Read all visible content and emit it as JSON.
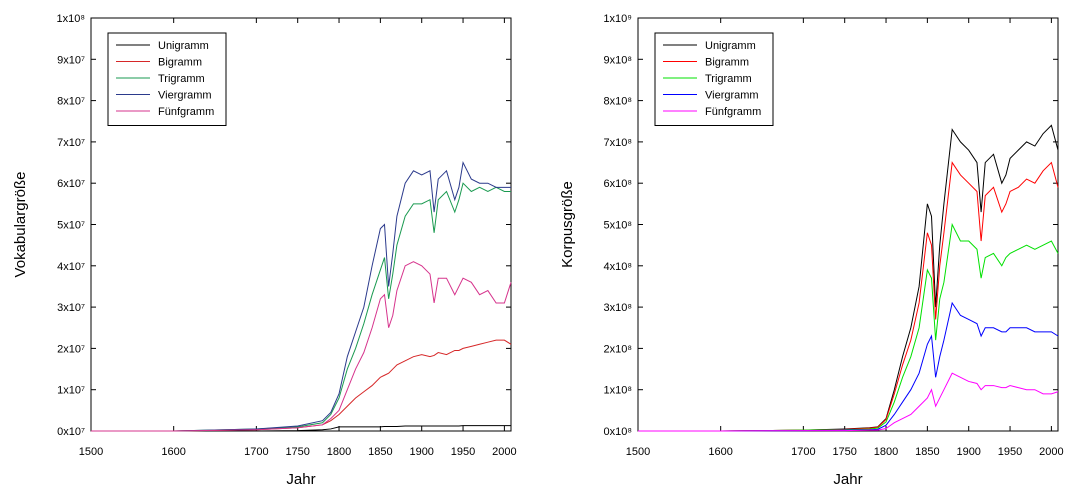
{
  "chart_data": [
    {
      "type": "line",
      "xlabel": "Jahr",
      "ylabel": "Vokabulargröße",
      "x": [
        1500,
        1600,
        1700,
        1750,
        1780,
        1790,
        1800,
        1810,
        1820,
        1830,
        1840,
        1850,
        1855,
        1860,
        1865,
        1870,
        1880,
        1890,
        1900,
        1910,
        1915,
        1920,
        1930,
        1940,
        1945,
        1950,
        1960,
        1970,
        1980,
        1990,
        2000,
        2008
      ],
      "xlim": [
        1500,
        2008
      ],
      "xticks": [
        1500,
        1600,
        1700,
        1750,
        1800,
        1850,
        1900,
        1950,
        2000
      ],
      "ylim": [
        0,
        100000000.0
      ],
      "yticks": [
        {
          "value": 0,
          "label": "0x10⁷"
        },
        {
          "value": 10000000.0,
          "label": "1x10⁷"
        },
        {
          "value": 20000000.0,
          "label": "2x10⁷"
        },
        {
          "value": 30000000.0,
          "label": "3x10⁷"
        },
        {
          "value": 40000000.0,
          "label": "4x10⁷"
        },
        {
          "value": 50000000.0,
          "label": "5x10⁷"
        },
        {
          "value": 60000000.0,
          "label": "6x10⁷"
        },
        {
          "value": 70000000.0,
          "label": "7x10⁷"
        },
        {
          "value": 80000000.0,
          "label": "8x10⁷"
        },
        {
          "value": 90000000.0,
          "label": "9x10⁷"
        },
        {
          "value": 100000000.0,
          "label": "1x10⁸"
        }
      ],
      "legend": "upper left",
      "series": [
        {
          "name": "Unigramm",
          "color": "#000000",
          "values": [
            0,
            0,
            0,
            100000.0,
            300000.0,
            500000.0,
            1000000.0,
            1000000.0,
            1000000.0,
            1000000.0,
            1000000.0,
            1000000.0,
            1100000.0,
            1100000.0,
            1100000.0,
            1100000.0,
            1200000.0,
            1200000.0,
            1200000.0,
            1200000.0,
            1200000.0,
            1200000.0,
            1200000.0,
            1200000.0,
            1200000.0,
            1300000.0,
            1300000.0,
            1300000.0,
            1300000.0,
            1300000.0,
            1300000.0,
            1300000.0
          ]
        },
        {
          "name": "Bigramm",
          "color": "#d62728",
          "values": [
            0,
            0,
            300000.0,
            800000.0,
            1500000.0,
            2500000.0,
            4000000.0,
            6000000.0,
            8000000.0,
            9500000.0,
            11000000.0,
            13000000.0,
            13500000.0,
            14000000.0,
            15000000.0,
            16000000.0,
            17000000.0,
            18000000.0,
            18500000.0,
            18000000.0,
            18300000.0,
            19000000.0,
            18500000.0,
            19500000.0,
            19500000.0,
            20000000.0,
            20500000.0,
            21000000.0,
            21500000.0,
            22000000.0,
            22000000.0,
            21000000.0
          ]
        },
        {
          "name": "Trigramm",
          "color": "#1a9a50",
          "values": [
            0,
            0,
            500000.0,
            1000000.0,
            2000000.0,
            4000000.0,
            8000000.0,
            15000000.0,
            20000000.0,
            26000000.0,
            33000000.0,
            39000000.0,
            42000000.0,
            32000000.0,
            38000000.0,
            45000000.0,
            52000000.0,
            55000000.0,
            55000000.0,
            56000000.0,
            48000000.0,
            56000000.0,
            58000000.0,
            53000000.0,
            56000000.0,
            60000000.0,
            58000000.0,
            59000000.0,
            58000000.0,
            59000000.0,
            58000000.0,
            58000000.0
          ]
        },
        {
          "name": "Viergramm",
          "color": "#2b3a8c",
          "values": [
            0,
            0,
            500000.0,
            1200000.0,
            2500000.0,
            4500000.0,
            9000000.0,
            18000000.0,
            24000000.0,
            30000000.0,
            40000000.0,
            49000000.0,
            50000000.0,
            35000000.0,
            43000000.0,
            52000000.0,
            60000000.0,
            63000000.0,
            62000000.0,
            63000000.0,
            53000000.0,
            61000000.0,
            63000000.0,
            56000000.0,
            59000000.0,
            65000000.0,
            61000000.0,
            60000000.0,
            60000000.0,
            59000000.0,
            59000000.0,
            59000000.0
          ]
        },
        {
          "name": "Fünfgramm",
          "color": "#d6338c",
          "values": [
            0,
            0,
            300000.0,
            800000.0,
            1500000.0,
            3000000.0,
            5000000.0,
            10000000.0,
            15000000.0,
            19000000.0,
            25000000.0,
            32000000.0,
            33000000.0,
            25000000.0,
            28000000.0,
            34000000.0,
            40000000.0,
            41000000.0,
            40000000.0,
            38000000.0,
            31000000.0,
            37000000.0,
            37000000.0,
            33000000.0,
            35000000.0,
            37000000.0,
            36000000.0,
            33000000.0,
            34000000.0,
            31000000.0,
            31000000.0,
            36000000.0
          ]
        }
      ]
    },
    {
      "type": "line",
      "xlabel": "Jahr",
      "ylabel": "Korpusgröße",
      "x": [
        1500,
        1600,
        1700,
        1750,
        1780,
        1790,
        1800,
        1810,
        1820,
        1830,
        1840,
        1850,
        1855,
        1860,
        1865,
        1870,
        1880,
        1890,
        1900,
        1910,
        1915,
        1920,
        1930,
        1940,
        1945,
        1950,
        1960,
        1970,
        1980,
        1990,
        2000,
        2008
      ],
      "xlim": [
        1500,
        2008
      ],
      "xticks": [
        1500,
        1600,
        1700,
        1750,
        1800,
        1850,
        1900,
        1950,
        2000
      ],
      "ylim": [
        0,
        1000000000.0
      ],
      "yticks": [
        {
          "value": 0,
          "label": "0x10⁸"
        },
        {
          "value": 100000000.0,
          "label": "1x10⁸"
        },
        {
          "value": 200000000.0,
          "label": "2x10⁸"
        },
        {
          "value": 300000000.0,
          "label": "3x10⁸"
        },
        {
          "value": 400000000.0,
          "label": "4x10⁸"
        },
        {
          "value": 500000000.0,
          "label": "5x10⁸"
        },
        {
          "value": 600000000.0,
          "label": "6x10⁸"
        },
        {
          "value": 700000000.0,
          "label": "7x10⁸"
        },
        {
          "value": 800000000.0,
          "label": "8x10⁸"
        },
        {
          "value": 900000000.0,
          "label": "9x10⁸"
        },
        {
          "value": 1000000000.0,
          "label": "1x10⁹"
        }
      ],
      "legend": "upper left",
      "series": [
        {
          "name": "Unigramm",
          "color": "#000000",
          "values": [
            0,
            0,
            2000000.0,
            5000000.0,
            8000000.0,
            10000000.0,
            30000000.0,
            100000000.0,
            180000000.0,
            250000000.0,
            350000000.0,
            550000000.0,
            520000000.0,
            300000000.0,
            450000000.0,
            550000000.0,
            730000000.0,
            700000000.0,
            680000000.0,
            650000000.0,
            530000000.0,
            650000000.0,
            670000000.0,
            600000000.0,
            620000000.0,
            660000000.0,
            680000000.0,
            700000000.0,
            690000000.0,
            720000000.0,
            740000000.0,
            680000000.0
          ]
        },
        {
          "name": "Bigramm",
          "color": "#ff0000",
          "values": [
            0,
            0,
            2000000.0,
            4000000.0,
            7000000.0,
            9000000.0,
            28000000.0,
            90000000.0,
            160000000.0,
            220000000.0,
            310000000.0,
            480000000.0,
            450000000.0,
            270000000.0,
            400000000.0,
            480000000.0,
            650000000.0,
            620000000.0,
            600000000.0,
            580000000.0,
            460000000.0,
            570000000.0,
            590000000.0,
            530000000.0,
            550000000.0,
            580000000.0,
            590000000.0,
            610000000.0,
            600000000.0,
            630000000.0,
            650000000.0,
            590000000.0
          ]
        },
        {
          "name": "Trigramm",
          "color": "#00e000",
          "values": [
            0,
            0,
            2000000.0,
            3000000.0,
            5000000.0,
            7000000.0,
            22000000.0,
            70000000.0,
            130000000.0,
            180000000.0,
            250000000.0,
            390000000.0,
            370000000.0,
            220000000.0,
            320000000.0,
            360000000.0,
            500000000.0,
            460000000.0,
            460000000.0,
            440000000.0,
            370000000.0,
            420000000.0,
            430000000.0,
            400000000.0,
            420000000.0,
            430000000.0,
            440000000.0,
            450000000.0,
            440000000.0,
            450000000.0,
            460000000.0,
            430000000.0
          ]
        },
        {
          "name": "Viergramm",
          "color": "#0000ff",
          "values": [
            0,
            0,
            1000000.0,
            2000000.0,
            3000000.0,
            4000000.0,
            14000000.0,
            40000000.0,
            70000000.0,
            100000000.0,
            140000000.0,
            210000000.0,
            230000000.0,
            130000000.0,
            180000000.0,
            220000000.0,
            310000000.0,
            280000000.0,
            270000000.0,
            260000000.0,
            230000000.0,
            250000000.0,
            250000000.0,
            240000000.0,
            240000000.0,
            250000000.0,
            250000000.0,
            250000000.0,
            240000000.0,
            240000000.0,
            240000000.0,
            230000000.0
          ]
        },
        {
          "name": "Fünfgramm",
          "color": "#ff00ff",
          "values": [
            0,
            0,
            1000000.0,
            1000000.0,
            2000000.0,
            2000000.0,
            6000000.0,
            20000000.0,
            30000000.0,
            40000000.0,
            60000000.0,
            80000000.0,
            100000000.0,
            60000000.0,
            80000000.0,
            100000000.0,
            140000000.0,
            130000000.0,
            120000000.0,
            115000000.0,
            100000000.0,
            110000000.0,
            110000000.0,
            105000000.0,
            105000000.0,
            110000000.0,
            105000000.0,
            100000000.0,
            100000000.0,
            90000000.0,
            90000000.0,
            95000000.0
          ]
        }
      ]
    }
  ]
}
